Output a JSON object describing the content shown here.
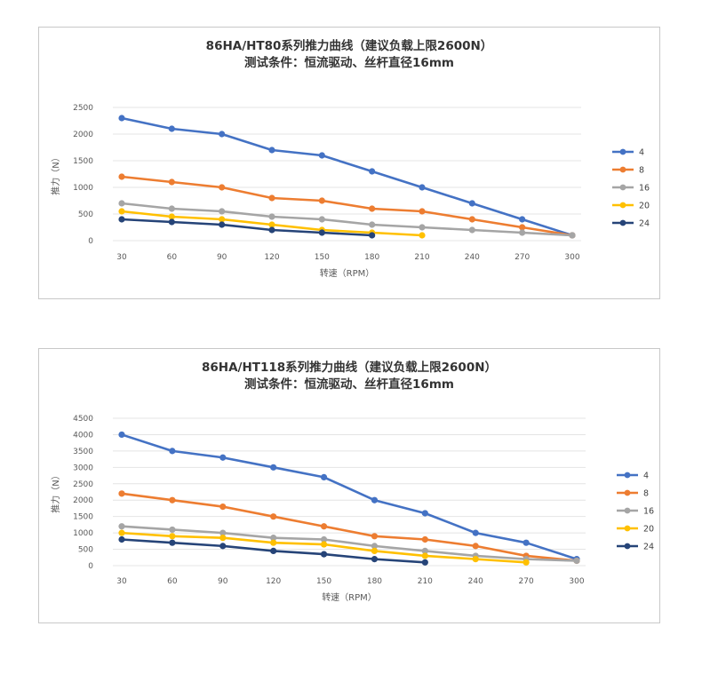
{
  "charts": [
    {
      "title_line1": "86HA/HT80系列推力曲线（建议负载上限2600N）",
      "title_line2": "测试条件：恒流驱动、丝杆直径16mm"
    },
    {
      "title_line1": "86HA/HT118系列推力曲线（建议负载上限2600N）",
      "title_line2": "测试条件：恒流驱动、丝杆直径16mm"
    }
  ],
  "chart_data": [
    {
      "type": "line",
      "title": "86HA/HT80系列推力曲线（建议负载上限2600N）",
      "subtitle": "测试条件：恒流驱动、丝杆直径16mm",
      "xlabel": "转速（RPM）",
      "ylabel": "推力（N）",
      "x": [
        30,
        60,
        90,
        120,
        150,
        180,
        210,
        240,
        270,
        300
      ],
      "ylim": [
        0,
        2500
      ],
      "yticks": [
        0,
        500,
        1000,
        1500,
        2000,
        2500
      ],
      "grid": "horizontal",
      "legend_position": "right",
      "series": [
        {
          "name": "4",
          "color": "#4472C4",
          "values": [
            2300,
            2100,
            2000,
            1700,
            1600,
            1300,
            1000,
            700,
            400,
            100
          ]
        },
        {
          "name": "8",
          "color": "#ED7D31",
          "values": [
            1200,
            1100,
            1000,
            800,
            750,
            600,
            550,
            400,
            250,
            100
          ]
        },
        {
          "name": "16",
          "color": "#A5A5A5",
          "values": [
            700,
            600,
            550,
            450,
            400,
            300,
            250,
            200,
            150,
            100
          ]
        },
        {
          "name": "20",
          "color": "#FFC000",
          "values": [
            550,
            450,
            400,
            300,
            200,
            150,
            100,
            null,
            null,
            null
          ]
        },
        {
          "name": "24",
          "color": "#264478",
          "values": [
            400,
            350,
            300,
            200,
            150,
            100,
            null,
            null,
            null,
            null
          ]
        }
      ]
    },
    {
      "type": "line",
      "title": "86HA/HT118系列推力曲线（建议负载上限2600N）",
      "subtitle": "测试条件：恒流驱动、丝杆直径16mm",
      "xlabel": "转速（RPM）",
      "ylabel": "推力（N）",
      "x": [
        30,
        60,
        90,
        120,
        150,
        180,
        210,
        240,
        270,
        300
      ],
      "ylim": [
        0,
        4500
      ],
      "yticks": [
        0,
        500,
        1000,
        1500,
        2000,
        2500,
        3000,
        3500,
        4000,
        4500
      ],
      "grid": "horizontal",
      "legend_position": "right",
      "series": [
        {
          "name": "4",
          "color": "#4472C4",
          "values": [
            4000,
            3500,
            3300,
            3000,
            2700,
            2000,
            1600,
            1000,
            700,
            200
          ]
        },
        {
          "name": "8",
          "color": "#ED7D31",
          "values": [
            2200,
            2000,
            1800,
            1500,
            1200,
            900,
            800,
            600,
            300,
            150
          ]
        },
        {
          "name": "16",
          "color": "#A5A5A5",
          "values": [
            1200,
            1100,
            1000,
            850,
            800,
            600,
            450,
            300,
            200,
            150
          ]
        },
        {
          "name": "20",
          "color": "#FFC000",
          "values": [
            1000,
            900,
            850,
            700,
            650,
            450,
            300,
            200,
            100,
            null
          ]
        },
        {
          "name": "24",
          "color": "#264478",
          "values": [
            800,
            700,
            600,
            450,
            350,
            200,
            100,
            null,
            null,
            null
          ]
        }
      ]
    }
  ]
}
